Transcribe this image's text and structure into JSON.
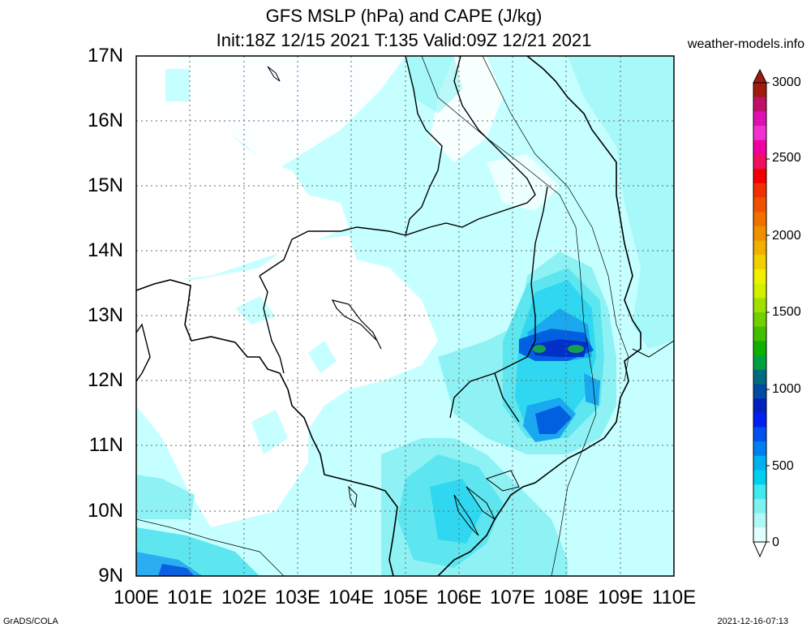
{
  "header": {
    "title_line1": "GFS MSLP (hPa) and CAPE (J/kg)",
    "title_line2": "Init:18Z 12/15 2021 T:135 Valid:09Z 12/21 2021",
    "site": "weather-models.info"
  },
  "axes": {
    "lat_labels": [
      "17N",
      "16N",
      "15N",
      "14N",
      "13N",
      "12N",
      "11N",
      "10N",
      "9N"
    ],
    "lon_labels": [
      "100E",
      "101E",
      "102E",
      "103E",
      "104E",
      "105E",
      "106E",
      "107E",
      "108E",
      "109E",
      "110E"
    ]
  },
  "colorbar": {
    "labels": [
      "3000",
      "2500",
      "2000",
      "1500",
      "1000",
      "500",
      "0"
    ],
    "colors": [
      "#a01a10",
      "#c0106a",
      "#e010b0",
      "#f030d0",
      "#f000a0",
      "#f01060",
      "#f00000",
      "#f03000",
      "#f05000",
      "#f07000",
      "#f09000",
      "#f0b000",
      "#f0d000",
      "#f0f000",
      "#d0f000",
      "#a0e000",
      "#70d000",
      "#40c000",
      "#10b000",
      "#00a040",
      "#006a80",
      "#004aa0",
      "#0020c0",
      "#0020f0",
      "#0050f0",
      "#0080f0",
      "#00b0f0",
      "#00d0f0",
      "#40e8f0",
      "#80f0f0",
      "#b0f8f8",
      "#e0ffff"
    ]
  },
  "footer": {
    "left": "GrADS/COLA",
    "right": "2021-12-16-07:13"
  }
}
